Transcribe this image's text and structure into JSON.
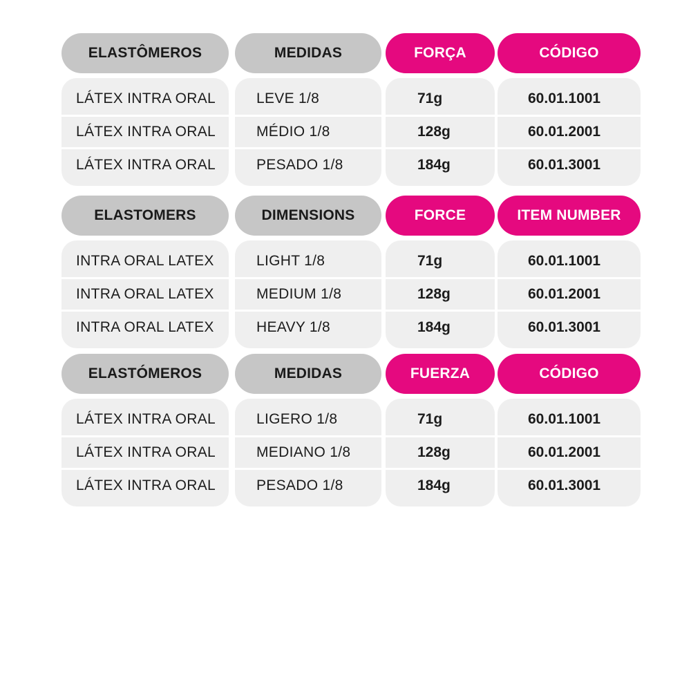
{
  "colors": {
    "header_gray": "#c6c6c6",
    "header_pink": "#e5097f",
    "card_bg": "#efefef"
  },
  "tables": [
    {
      "headers": [
        "ELASTÔMEROS",
        "MEDIDAS",
        "FORÇA",
        "CÓDIGO"
      ],
      "rows": [
        [
          "LÁTEX INTRA ORAL",
          "LEVE 1/8",
          "71g",
          "60.01.1001"
        ],
        [
          "LÁTEX INTRA ORAL",
          "MÉDIO 1/8",
          "128g",
          "60.01.2001"
        ],
        [
          "LÁTEX INTRA ORAL",
          "PESADO 1/8",
          "184g",
          "60.01.3001"
        ]
      ]
    },
    {
      "headers": [
        "ELASTOMERS",
        "DIMENSIONS",
        "FORCE",
        "ITEM NUMBER"
      ],
      "rows": [
        [
          "INTRA ORAL LATEX",
          "LIGHT 1/8",
          "71g",
          "60.01.1001"
        ],
        [
          "INTRA ORAL LATEX",
          "MEDIUM 1/8",
          "128g",
          "60.01.2001"
        ],
        [
          "INTRA ORAL LATEX",
          "HEAVY 1/8",
          "184g",
          "60.01.3001"
        ]
      ]
    },
    {
      "headers": [
        "ELASTÓMEROS",
        "MEDIDAS",
        "FUERZA",
        "CÓDIGO"
      ],
      "rows": [
        [
          "LÁTEX INTRA ORAL",
          "LIGERO 1/8",
          "71g",
          "60.01.1001"
        ],
        [
          "LÁTEX INTRA ORAL",
          "MEDIANO 1/8",
          "128g",
          "60.01.2001"
        ],
        [
          "LÁTEX INTRA ORAL",
          "PESADO 1/8",
          "184g",
          "60.01.3001"
        ]
      ]
    }
  ]
}
